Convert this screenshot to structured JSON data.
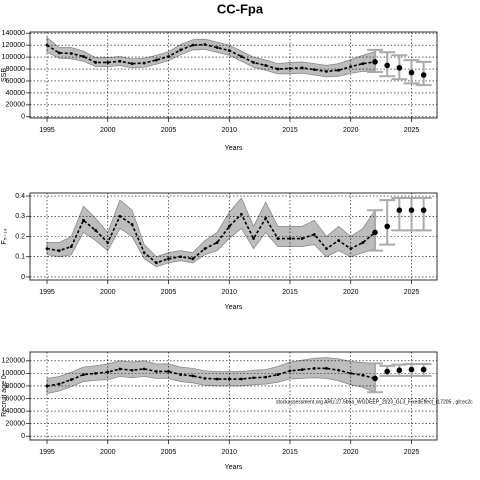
{
  "title": "CC-Fpa",
  "chart_data": [
    {
      "type": "line",
      "xlabel": "Years",
      "ylabel": "SSB",
      "xlim": [
        1993.6,
        2027.1
      ],
      "xticks": [
        1995,
        2000,
        2005,
        2010,
        2015,
        2020,
        2025
      ],
      "ylim": [
        -2000,
        142000
      ],
      "yticks": [
        0,
        20000,
        40000,
        60000,
        80000,
        100000,
        120000,
        140000
      ],
      "grid": true,
      "x": [
        1995,
        1996,
        1997,
        1998,
        1999,
        2000,
        2001,
        2002,
        2003,
        2004,
        2005,
        2006,
        2007,
        2008,
        2009,
        2010,
        2011,
        2012,
        2013,
        2014,
        2015,
        2016,
        2017,
        2018,
        2019,
        2020,
        2021,
        2022
      ],
      "values": [
        120000,
        107000,
        106000,
        101000,
        91000,
        91000,
        93000,
        89000,
        90000,
        95000,
        101000,
        112000,
        120000,
        121000,
        116000,
        111000,
        101000,
        91000,
        86000,
        80000,
        81000,
        82000,
        79000,
        76000,
        78000,
        84000,
        89000,
        92000
      ],
      "lower": [
        108000,
        98000,
        97000,
        93000,
        84000,
        84000,
        86000,
        82000,
        83000,
        88000,
        94000,
        104000,
        112000,
        113000,
        108000,
        103000,
        93000,
        83000,
        78000,
        72000,
        72000,
        73000,
        70000,
        67000,
        68000,
        73000,
        76000,
        77000
      ],
      "upper": [
        133000,
        116000,
        116000,
        110000,
        99000,
        99000,
        101000,
        97000,
        98000,
        103000,
        109000,
        121000,
        129000,
        130000,
        125000,
        120000,
        110000,
        100000,
        95000,
        89000,
        91000,
        92000,
        89000,
        86000,
        89000,
        96000,
        103000,
        109000
      ],
      "forecast": {
        "x": [
          2022,
          2023,
          2024,
          2025,
          2026
        ],
        "values": [
          92000,
          86000,
          82000,
          74000,
          70000
        ],
        "lower": [
          75000,
          68000,
          63000,
          56000,
          53000
        ],
        "upper": [
          112000,
          108000,
          103000,
          95000,
          92000
        ]
      }
    },
    {
      "type": "line",
      "xlabel": "Years",
      "ylabel": "F₅₋₁₄",
      "xlim": [
        1993.6,
        2027.1
      ],
      "xticks": [
        1995,
        2000,
        2005,
        2010,
        2015,
        2020,
        2025
      ],
      "ylim": [
        -0.015,
        0.415
      ],
      "yticks": [
        0,
        0.1,
        0.2,
        0.3,
        0.4
      ],
      "grid": true,
      "x": [
        1995,
        1996,
        1997,
        1998,
        1999,
        2000,
        2001,
        2002,
        2003,
        2004,
        2005,
        2006,
        2007,
        2008,
        2009,
        2010,
        2011,
        2012,
        2013,
        2014,
        2015,
        2016,
        2017,
        2018,
        2019,
        2020,
        2021,
        2022
      ],
      "values": [
        0.14,
        0.13,
        0.15,
        0.28,
        0.23,
        0.17,
        0.3,
        0.26,
        0.12,
        0.07,
        0.09,
        0.1,
        0.09,
        0.14,
        0.17,
        0.25,
        0.31,
        0.19,
        0.29,
        0.19,
        0.19,
        0.19,
        0.21,
        0.14,
        0.18,
        0.14,
        0.17,
        0.22
      ],
      "lower": [
        0.11,
        0.1,
        0.11,
        0.22,
        0.18,
        0.13,
        0.24,
        0.2,
        0.09,
        0.05,
        0.07,
        0.08,
        0.07,
        0.11,
        0.13,
        0.19,
        0.24,
        0.14,
        0.22,
        0.15,
        0.15,
        0.15,
        0.16,
        0.1,
        0.13,
        0.1,
        0.12,
        0.14
      ],
      "upper": [
        0.17,
        0.17,
        0.2,
        0.35,
        0.29,
        0.22,
        0.38,
        0.33,
        0.16,
        0.1,
        0.12,
        0.13,
        0.12,
        0.18,
        0.22,
        0.32,
        0.39,
        0.25,
        0.37,
        0.25,
        0.25,
        0.25,
        0.28,
        0.2,
        0.25,
        0.2,
        0.24,
        0.33
      ],
      "forecast": {
        "x": [
          2022,
          2023,
          2024,
          2025,
          2026
        ],
        "values": [
          0.22,
          0.25,
          0.33,
          0.33,
          0.33
        ],
        "lower": [
          0.13,
          0.16,
          0.23,
          0.23,
          0.23
        ],
        "upper": [
          0.33,
          0.38,
          0.39,
          0.39,
          0.39
        ]
      }
    },
    {
      "type": "line",
      "xlabel": "Years",
      "ylabel": "Recruit age 0",
      "annotation": "stockassessment.org ARU.27.5b6a_WGDEEP_2023_GL3_FixedEffect_r17205 , git:ec2c",
      "xlim": [
        1993.6,
        2027.1
      ],
      "xticks": [
        1995,
        2000,
        2005,
        2010,
        2015,
        2020,
        2025
      ],
      "ylim": [
        -6000,
        134000
      ],
      "yticks": [
        0,
        20000,
        40000,
        60000,
        80000,
        100000,
        120000
      ],
      "grid": true,
      "x": [
        1995,
        1996,
        1997,
        1998,
        1999,
        2000,
        2001,
        2002,
        2003,
        2004,
        2005,
        2006,
        2007,
        2008,
        2009,
        2010,
        2011,
        2012,
        2013,
        2014,
        2015,
        2016,
        2017,
        2018,
        2019,
        2020,
        2021,
        2022
      ],
      "values": [
        80000,
        83000,
        90000,
        98000,
        100000,
        102000,
        107000,
        105000,
        107000,
        103000,
        103000,
        98000,
        96000,
        92000,
        91000,
        91000,
        91000,
        93000,
        94000,
        98000,
        104000,
        106000,
        108000,
        108000,
        105000,
        100000,
        97000,
        92000
      ],
      "lower": [
        68000,
        72000,
        79000,
        87000,
        89000,
        90000,
        95000,
        93000,
        95000,
        92000,
        92000,
        87000,
        85000,
        81000,
        80000,
        80000,
        80000,
        82000,
        83000,
        86000,
        91000,
        92000,
        93000,
        92000,
        88000,
        82000,
        78000,
        70000
      ],
      "upper": [
        92000,
        95000,
        102000,
        110000,
        112000,
        115000,
        120000,
        118000,
        120000,
        115000,
        115000,
        110000,
        108000,
        104000,
        103000,
        103000,
        103000,
        105000,
        106000,
        111000,
        118000,
        121000,
        124000,
        125000,
        123000,
        119000,
        117000,
        116000
      ],
      "forecast": {
        "x": [
          2022,
          2023,
          2024,
          2025,
          2026
        ],
        "values": [
          92000,
          103000,
          105000,
          106000,
          106000
        ],
        "lower": [
          70000,
          96000,
          96000,
          96000,
          96000
        ],
        "upper": [
          116000,
          112000,
          114000,
          115000,
          115000
        ]
      }
    }
  ]
}
